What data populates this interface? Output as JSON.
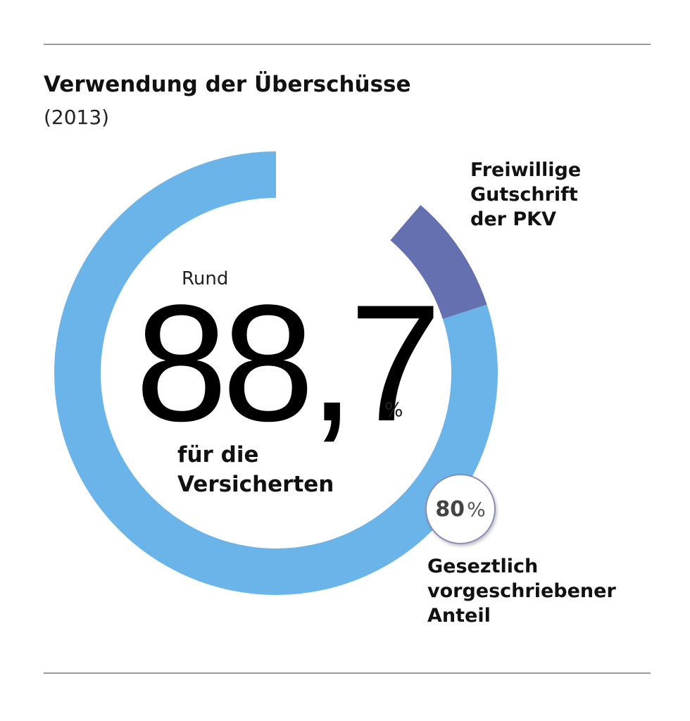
{
  "chart_data": {
    "type": "pie",
    "variant": "donut",
    "title": "Verwendung der Überschüsse",
    "subtitle": "(2013)",
    "slices": [
      {
        "label": "Gesetzlich vorgeschriebener Anteil",
        "value": 80,
        "color": "#6ab4ea"
      },
      {
        "label": "Freiwillige Gutschrift der PKV",
        "value": 8.7,
        "color": "#6570b0"
      },
      {
        "label": "",
        "value": 11.3,
        "color": "#ffffff"
      }
    ],
    "start_angle_deg": -90,
    "direction": "counterclockwise",
    "center": {
      "prefix": "Rund",
      "value": "88,7",
      "unit": "%",
      "caption_lines": [
        "für die",
        "Versicherten"
      ]
    },
    "annotations": {
      "freiwillig_lines": [
        "Freiwillige",
        "Gutschrift",
        "der PKV"
      ],
      "gesetzlich_lines": [
        "Geseztlich",
        "vorgeschriebener",
        "Anteil"
      ],
      "badge_value": "80",
      "badge_unit": "%"
    }
  }
}
